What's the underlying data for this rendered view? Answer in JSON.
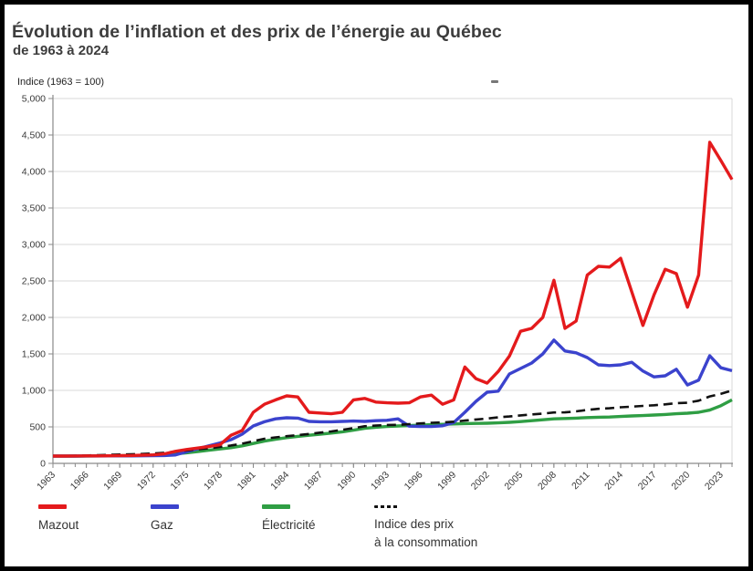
{
  "header": {
    "title": "Évolution de l’inflation et des prix de l’énergie au Québec",
    "subtitle": "de 1963 à 2024"
  },
  "colors": {
    "mazout": "#e41a1c",
    "gaz": "#3b43cd",
    "electricite": "#2f9e44",
    "cpi": "#111111",
    "gridline": "#d8d8d8",
    "axis": "#8a8a8a",
    "tick_label": "#3a3a3a",
    "title_text": "#3d3d3d"
  },
  "chart_data": {
    "type": "line",
    "title": "Évolution de l’inflation et des prix de l’énergie au Québec de 1963 à 2024",
    "y_axis_label": "Indice (1963 = 100)",
    "ylim": [
      0,
      5000
    ],
    "y_tick_step": 500,
    "y_tick_labels": [
      "0",
      "500",
      "1,000",
      "1,500",
      "2,000",
      "2,500",
      "3,000",
      "3,500",
      "4,000",
      "4,500",
      "5,000"
    ],
    "x_tick_labels": [
      "1963",
      "1966",
      "1969",
      "1972",
      "1975",
      "1978",
      "1981",
      "1984",
      "1987",
      "1990",
      "1993",
      "1996",
      "1999",
      "2002",
      "2005",
      "2008",
      "2011",
      "2014",
      "2017",
      "2020",
      "2023"
    ],
    "grid": "horizontal",
    "legend_position": "bottom",
    "years": [
      1963,
      1964,
      1965,
      1966,
      1967,
      1968,
      1969,
      1970,
      1971,
      1972,
      1973,
      1974,
      1975,
      1976,
      1977,
      1978,
      1979,
      1980,
      1981,
      1982,
      1983,
      1984,
      1985,
      1986,
      1987,
      1988,
      1989,
      1990,
      1991,
      1992,
      1993,
      1994,
      1995,
      1996,
      1997,
      1998,
      1999,
      2000,
      2001,
      2002,
      2003,
      2004,
      2005,
      2006,
      2007,
      2008,
      2009,
      2010,
      2011,
      2012,
      2013,
      2014,
      2015,
      2016,
      2017,
      2018,
      2019,
      2020,
      2021,
      2022,
      2023,
      2024
    ],
    "series": [
      {
        "name": "Électricité",
        "color": "#2f9e44",
        "style": "solid",
        "values": [
          100,
          100,
          100,
          101,
          102,
          103,
          105,
          107,
          110,
          114,
          120,
          130,
          145,
          162,
          180,
          198,
          215,
          240,
          272,
          305,
          330,
          352,
          370,
          385,
          400,
          415,
          432,
          455,
          480,
          495,
          505,
          512,
          518,
          524,
          530,
          535,
          540,
          545,
          548,
          550,
          555,
          562,
          572,
          585,
          598,
          610,
          615,
          620,
          628,
          632,
          635,
          642,
          650,
          655,
          662,
          670,
          680,
          688,
          700,
          730,
          790,
          870
        ]
      },
      {
        "name": "Gaz",
        "color": "#3b43cd",
        "style": "solid",
        "values": [
          100,
          100,
          100,
          101,
          101,
          102,
          102,
          103,
          104,
          106,
          108,
          115,
          160,
          200,
          240,
          280,
          325,
          400,
          513,
          570,
          610,
          625,
          620,
          575,
          570,
          570,
          575,
          580,
          575,
          585,
          590,
          610,
          510,
          505,
          505,
          515,
          560,
          700,
          850,
          975,
          990,
          1225,
          1300,
          1375,
          1500,
          1690,
          1540,
          1515,
          1450,
          1350,
          1340,
          1350,
          1385,
          1265,
          1185,
          1200,
          1290,
          1075,
          1140,
          1475,
          1310,
          1270
        ]
      },
      {
        "name": "Indice des prix à la consommation",
        "color": "#111111",
        "style": "dashed",
        "values": [
          100,
          102,
          104,
          108,
          112,
          116,
          121,
          125,
          129,
          135,
          145,
          161,
          178,
          191,
          206,
          225,
          245,
          270,
          304,
          337,
          356,
          372,
          387,
          403,
          421,
          438,
          460,
          482,
          509,
          517,
          526,
          527,
          538,
          547,
          556,
          561,
          571,
          586,
          601,
          614,
          631,
          643,
          657,
          670,
          681,
          697,
          699,
          712,
          733,
          748,
          755,
          769,
          777,
          788,
          796,
          809,
          825,
          831,
          859,
          917,
          952,
          1000
        ]
      },
      {
        "name": "Mazout",
        "color": "#e41a1c",
        "style": "solid",
        "values": [
          100,
          100,
          101,
          102,
          103,
          104,
          106,
          108,
          112,
          116,
          130,
          165,
          190,
          210,
          230,
          255,
          385,
          450,
          700,
          810,
          870,
          925,
          910,
          700,
          690,
          680,
          700,
          870,
          890,
          840,
          830,
          825,
          830,
          910,
          935,
          810,
          870,
          1320,
          1160,
          1100,
          1260,
          1470,
          1810,
          1850,
          2000,
          2510,
          1850,
          1950,
          2580,
          2700,
          2690,
          2810,
          2350,
          1890,
          2310,
          2660,
          2600,
          2140,
          2580,
          4400,
          4150,
          3890
        ]
      }
    ],
    "legend": [
      {
        "label": "Mazout",
        "color": "#e41a1c",
        "dashed": false
      },
      {
        "label": "Gaz",
        "color": "#3b43cd",
        "dashed": false
      },
      {
        "label": "Électricité",
        "color": "#2f9e44",
        "dashed": false
      },
      {
        "label": "Indice des prix\nà la consommation",
        "color": "#111111",
        "dashed": true
      }
    ]
  }
}
